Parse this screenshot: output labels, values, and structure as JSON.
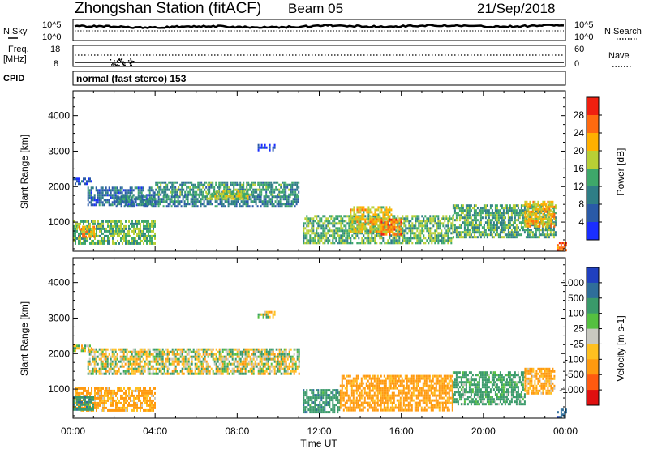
{
  "header": {
    "station": "Zhongshan Station (fitACF)",
    "beam": "Beam 05",
    "date": "21/Sep/2018"
  },
  "side_labels": {
    "nsky": "N.Sky",
    "freq": "Freq.",
    "mhz": "[MHz]",
    "cpid": "CPID",
    "nsearch": "N.Search",
    "nave": "Nave"
  },
  "noise_panel": {
    "left_ticks": [
      "10^5",
      "10^0"
    ],
    "right_ticks": [
      "10^5",
      "10^0"
    ]
  },
  "freq_panel": {
    "left_ticks": [
      "18",
      "8"
    ],
    "right_ticks": [
      "60",
      "0"
    ]
  },
  "cpid_text": "normal (fast stereo) 153",
  "x_axis": {
    "label": "Time UT",
    "ticks": [
      "00:00",
      "04:00",
      "08:00",
      "12:00",
      "16:00",
      "20:00",
      "00:00"
    ]
  },
  "y_axis": {
    "label": "Slant Range [km]",
    "ticks": [
      "1000",
      "2000",
      "3000",
      "4000"
    ]
  },
  "power_scale": {
    "label": "Power [dB]",
    "ticks": [
      "4",
      "8",
      "12",
      "16",
      "20",
      "24",
      "28"
    ],
    "colors": [
      "#1a2eff",
      "#2a5aa8",
      "#2f7e86",
      "#3ea86a",
      "#b8cf35",
      "#ffb000",
      "#ff6a10",
      "#f02010"
    ]
  },
  "velocity_scale": {
    "label": "Velocity [m s-1]",
    "ticks": [
      "1000",
      "500",
      "100",
      "25",
      "-25",
      "-100",
      "-500",
      "-1000"
    ],
    "colors": [
      "#2040c0",
      "#2f6e9a",
      "#3a9a6a",
      "#55c040",
      "#c8c8c0",
      "#ffc020",
      "#ff9a10",
      "#ff5a10",
      "#e01010"
    ]
  },
  "chart_data": [
    {
      "type": "heatmap",
      "title": "Power",
      "xlabel": "Time UT",
      "ylabel": "Slant Range [km]",
      "xlim": [
        0,
        24
      ],
      "ylim": [
        180,
        4700
      ],
      "colorbar_label": "Power [dB]",
      "colorbar_range": [
        0,
        32
      ],
      "regions": [
        {
          "t": [
            0.0,
            0.9
          ],
          "r": [
            2050,
            2250
          ],
          "v": 6
        },
        {
          "t": [
            0.7,
            4.0
          ],
          "r": [
            1500,
            2000
          ],
          "v": 8
        },
        {
          "t": [
            2.0,
            11.0
          ],
          "r": [
            1450,
            1750
          ],
          "v": 10
        },
        {
          "t": [
            4.0,
            11.0
          ],
          "r": [
            1750,
            2150
          ],
          "v": 12
        },
        {
          "t": [
            6.5,
            8.5
          ],
          "r": [
            1650,
            1900
          ],
          "v": 17
        },
        {
          "t": [
            0.0,
            4.0
          ],
          "r": [
            380,
            1050
          ],
          "v": 15
        },
        {
          "t": [
            0.2,
            1.0
          ],
          "r": [
            600,
            900
          ],
          "v": 22
        },
        {
          "t": [
            9.0,
            9.8
          ],
          "r": [
            3000,
            3200
          ],
          "v": 6
        },
        {
          "t": [
            11.2,
            18.5
          ],
          "r": [
            380,
            1200
          ],
          "v": 15
        },
        {
          "t": [
            13.5,
            15.5
          ],
          "r": [
            700,
            1450
          ],
          "v": 20
        },
        {
          "t": [
            15.0,
            16.0
          ],
          "r": [
            650,
            1100
          ],
          "v": 25
        },
        {
          "t": [
            18.5,
            23.5
          ],
          "r": [
            600,
            1500
          ],
          "v": 13
        },
        {
          "t": [
            22.0,
            23.5
          ],
          "r": [
            900,
            1600
          ],
          "v": 21
        },
        {
          "t": [
            23.6,
            24.0
          ],
          "r": [
            200,
            450
          ],
          "v": 26
        }
      ]
    },
    {
      "type": "heatmap",
      "title": "Velocity",
      "xlabel": "Time UT",
      "ylabel": "Slant Range [km]",
      "xlim": [
        0,
        24
      ],
      "ylim": [
        180,
        4700
      ],
      "colorbar_label": "Velocity [m s-1]",
      "colorbar_range": [
        -1000,
        1000
      ],
      "regions": [
        {
          "t": [
            0.0,
            0.9
          ],
          "r": [
            2050,
            2250
          ],
          "v": 0
        },
        {
          "t": [
            0.7,
            11.0
          ],
          "r": [
            1450,
            2150
          ],
          "v": 0
        },
        {
          "t": [
            0.0,
            4.0
          ],
          "r": [
            380,
            1050
          ],
          "v": -150
        },
        {
          "t": [
            0.0,
            1.0
          ],
          "r": [
            400,
            800
          ],
          "v": 200
        },
        {
          "t": [
            9.0,
            9.8
          ],
          "r": [
            3000,
            3200
          ],
          "v": 0
        },
        {
          "t": [
            11.2,
            13.0
          ],
          "r": [
            380,
            1000
          ],
          "v": 200
        },
        {
          "t": [
            13.0,
            18.5
          ],
          "r": [
            380,
            1400
          ],
          "v": -200
        },
        {
          "t": [
            18.5,
            22.0
          ],
          "r": [
            600,
            1500
          ],
          "v": 150
        },
        {
          "t": [
            22.0,
            23.5
          ],
          "r": [
            900,
            1600
          ],
          "v": -150
        },
        {
          "t": [
            23.6,
            24.0
          ],
          "r": [
            200,
            450
          ],
          "v": 700
        }
      ]
    }
  ]
}
